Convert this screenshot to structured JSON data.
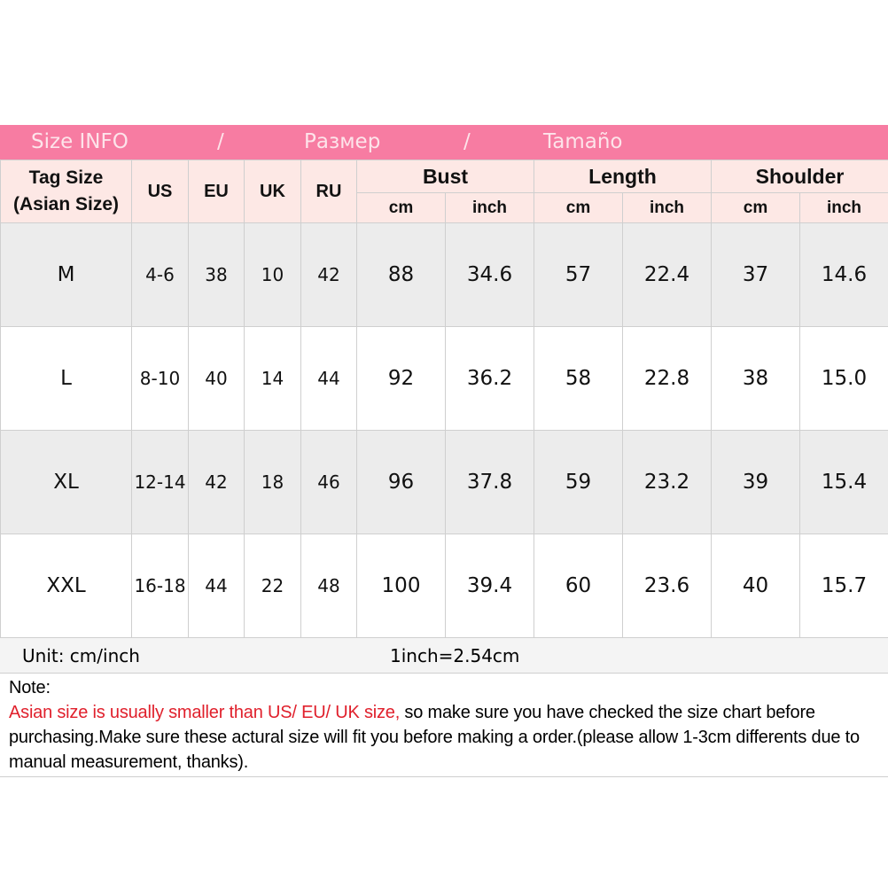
{
  "banner": {
    "en": "Size INFO",
    "sep1": "/",
    "ru": "Размер",
    "sep2": "/",
    "es": "Tamaño"
  },
  "header": {
    "tag": "Tag Size",
    "tag2": "(Asian Size)",
    "us": "US",
    "eu": "EU",
    "uk": "UK",
    "ru": "RU",
    "bust": "Bust",
    "length": "Length",
    "shoulder": "Shoulder",
    "cm": "cm",
    "inch": "inch"
  },
  "rows": [
    [
      "M",
      "4-6",
      "38",
      "10",
      "42",
      "88",
      "34.6",
      "57",
      "22.4",
      "37",
      "14.6"
    ],
    [
      "L",
      "8-10",
      "40",
      "14",
      "44",
      "92",
      "36.2",
      "58",
      "22.8",
      "38",
      "15.0"
    ],
    [
      "XL",
      "12-14",
      "42",
      "18",
      "46",
      "96",
      "37.8",
      "59",
      "23.2",
      "39",
      "15.4"
    ],
    [
      "XXL",
      "16-18",
      "44",
      "22",
      "48",
      "100",
      "39.4",
      "60",
      "23.6",
      "40",
      "15.7"
    ]
  ],
  "unit": {
    "label": "Unit: cm/inch",
    "conversion": "1inch=2.54cm"
  },
  "note": {
    "title": "Note:",
    "warning": "Asian size is usually smaller than US/ EU/ UK size,",
    "text": " so make sure you have checked the size chart before purchasing.Make sure these actural size will fit you before making a order.(please allow 1-3cm differents due to manual measurement, thanks)."
  },
  "colors": {
    "banner": "#f77ca2",
    "header_bg": "#fde8e5",
    "warning": "#e0202c"
  }
}
